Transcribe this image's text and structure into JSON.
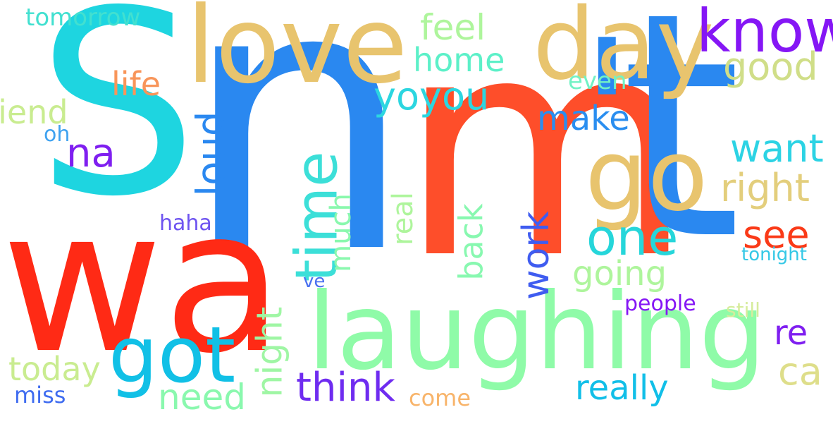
{
  "cloud": {
    "words": {
      "s": {
        "text": "S",
        "color": "#1ED5E0"
      },
      "n": {
        "text": "n",
        "color": "#2A88F0"
      },
      "m": {
        "text": "m",
        "color": "#FE4E2A"
      },
      "apos": {
        "text": "'",
        "color": "#2A88F0"
      },
      "t": {
        "text": "t",
        "color": "#2A88F0"
      },
      "wa": {
        "text": "wa",
        "color": "#FF2A15"
      },
      "love": {
        "text": "love",
        "color": "#E8C46E"
      },
      "day": {
        "text": "day",
        "color": "#E8C46E"
      },
      "know": {
        "text": "know",
        "color": "#8516F5"
      },
      "got_big": {
        "text": "go",
        "color": "#E8C46E"
      },
      "laughing": {
        "text": "laughing",
        "color": "#8FFBA8"
      },
      "got": {
        "text": "got",
        "color": "#11C0E6"
      },
      "tomorrow": {
        "text": "tomorrow",
        "color": "#42E0D0"
      },
      "feel": {
        "text": "feel",
        "color": "#AEF59C"
      },
      "home": {
        "text": "home",
        "color": "#5CF0C8"
      },
      "good": {
        "text": "good",
        "color": "#D0DE88"
      },
      "life": {
        "text": "life",
        "color": "#F8955A"
      },
      "yoyou": {
        "text": "yoyou",
        "color": "#2CD6E0"
      },
      "even": {
        "text": "even",
        "color": "#72F2C4"
      },
      "friend": {
        "text": "friend",
        "color": "#C9EC90"
      },
      "oh": {
        "text": "oh",
        "color": "#3FA2F0"
      },
      "na": {
        "text": "na",
        "color": "#7F1FF0"
      },
      "loud": {
        "text": "loud",
        "color": "#2A88F0"
      },
      "time": {
        "text": "time",
        "color": "#3CDFD8"
      },
      "make": {
        "text": "make",
        "color": "#2A8EF0"
      },
      "want": {
        "text": "want",
        "color": "#2CD3E4"
      },
      "right": {
        "text": "right",
        "color": "#E3CE7C"
      },
      "one": {
        "text": "one",
        "color": "#26D6DA"
      },
      "see": {
        "text": "see",
        "color": "#FA3A18"
      },
      "haha": {
        "text": "haha",
        "color": "#6E54F0"
      },
      "much": {
        "text": "much",
        "color": "#8AF8AE"
      },
      "real": {
        "text": "real",
        "color": "#AEF59C"
      },
      "back": {
        "text": "back",
        "color": "#88F8B0"
      },
      "work": {
        "text": "work",
        "color": "#3F5CF0"
      },
      "going": {
        "text": "going",
        "color": "#AEF59C"
      },
      "tonight": {
        "text": "tonight",
        "color": "#35C8E6"
      },
      "ve": {
        "text": "ve",
        "color": "#4A70F0"
      },
      "people": {
        "text": "people",
        "color": "#8516F5"
      },
      "still": {
        "text": "still",
        "color": "#D6EC9C"
      },
      "night": {
        "text": "night",
        "color": "#9FF6A4"
      },
      "re": {
        "text": "re",
        "color": "#7F1FF0"
      },
      "today": {
        "text": "today",
        "color": "#C9EC90"
      },
      "miss": {
        "text": "miss",
        "color": "#3F6CF0"
      },
      "need": {
        "text": "need",
        "color": "#8AF8AE"
      },
      "think": {
        "text": "think",
        "color": "#6F2CF0"
      },
      "come": {
        "text": "come",
        "color": "#F8B46A"
      },
      "really": {
        "text": "really",
        "color": "#11BFE8"
      },
      "ca": {
        "text": "ca",
        "color": "#DEDE8A"
      }
    }
  }
}
